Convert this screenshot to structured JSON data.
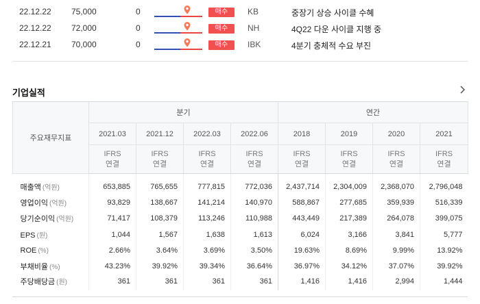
{
  "reports": [
    {
      "date": "22.12.22",
      "price": "75,000",
      "change": "0",
      "opinion": "매수",
      "broker": "KB",
      "title": "중장기 상승 사이클 수혜"
    },
    {
      "date": "22.12.22",
      "price": "72,000",
      "change": "0",
      "opinion": "매수",
      "broker": "NH",
      "title": "4Q22 다운 사이클 지행 중"
    },
    {
      "date": "22.12.21",
      "price": "70,000",
      "change": "0",
      "opinion": "매수",
      "broker": "IBK",
      "title": "4분기 충체적 수요 부진"
    }
  ],
  "colors": {
    "badge": "#f0504f",
    "graph_blue": "#2f4fb5",
    "graph_red": "#e94444",
    "pin": "#f47a5a"
  },
  "section": {
    "title": "기업실적",
    "more_icon": "chevron-right-icon"
  },
  "financials": {
    "label_header": "주요재무지표",
    "quarterly_label": "분기",
    "annual_label": "연간",
    "periods": [
      "2021.03",
      "2021.12",
      "2022.03",
      "2022.06",
      "2018",
      "2019",
      "2020",
      "2021"
    ],
    "basis_line1": "IFRS",
    "basis_line2": "연결",
    "rows": [
      {
        "label": "매출액",
        "unit": "(억원)",
        "values": [
          "653,885",
          "765,655",
          "777,815",
          "772,036",
          "2,437,714",
          "2,304,009",
          "2,368,070",
          "2,796,048"
        ]
      },
      {
        "label": "영업이익",
        "unit": "(억원)",
        "values": [
          "93,829",
          "138,667",
          "141,214",
          "140,970",
          "588,867",
          "277,685",
          "359,939",
          "516,339"
        ]
      },
      {
        "label": "당기순이익",
        "unit": "(억원)",
        "values": [
          "71,417",
          "108,379",
          "113,246",
          "110,988",
          "443,449",
          "217,389",
          "264,078",
          "399,075"
        ]
      },
      {
        "label": "EPS",
        "unit": "(원)",
        "values": [
          "1,044",
          "1,567",
          "1,638",
          "1,613",
          "6,024",
          "3,166",
          "3,841",
          "5,777"
        ]
      },
      {
        "label": "ROE",
        "unit": "(%)",
        "values": [
          "2.66%",
          "3.64%",
          "3.69%",
          "3.50%",
          "19.63%",
          "8.69%",
          "9.99%",
          "13.92%"
        ]
      },
      {
        "label": "부채비율",
        "unit": "(%)",
        "values": [
          "43.23%",
          "39.92%",
          "39.34%",
          "36.64%",
          "36.97%",
          "34.12%",
          "37.07%",
          "39.92%"
        ]
      },
      {
        "label": "주당배당금",
        "unit": "(원)",
        "values": [
          "361",
          "361",
          "361",
          "361",
          "1,416",
          "1,416",
          "2,994",
          "1,444"
        ]
      }
    ]
  }
}
